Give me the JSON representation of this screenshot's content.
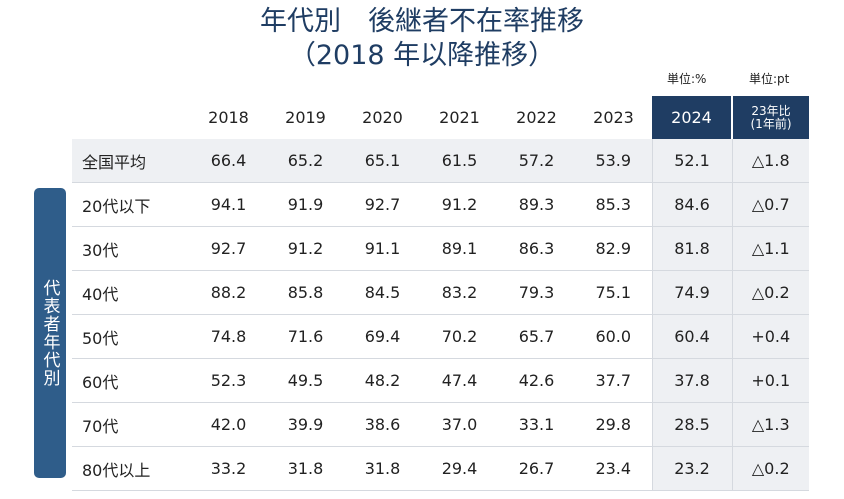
{
  "chart_data": {
    "type": "table",
    "title": "年代別　後継者不在率推移",
    "subtitle": "（2018 年以降推移）",
    "unit_left": "単位:%",
    "unit_right": "単位:pt",
    "side_label": "代表者年代別",
    "columns": [
      "2018",
      "2019",
      "2020",
      "2021",
      "2022",
      "2023",
      "2024"
    ],
    "change_header_line1": "23年比",
    "change_header_line2": "(1年前)",
    "rows": [
      {
        "label": "全国平均",
        "values": [
          "66.4",
          "65.2",
          "65.1",
          "61.5",
          "57.2",
          "53.9",
          "52.1"
        ],
        "change": "△1.8"
      },
      {
        "label": "20代以下",
        "values": [
          "94.1",
          "91.9",
          "92.7",
          "91.2",
          "89.3",
          "85.3",
          "84.6"
        ],
        "change": "△0.7"
      },
      {
        "label": "30代",
        "values": [
          "92.7",
          "91.2",
          "91.1",
          "89.1",
          "86.3",
          "82.9",
          "81.8"
        ],
        "change": "△1.1"
      },
      {
        "label": "40代",
        "values": [
          "88.2",
          "85.8",
          "84.5",
          "83.2",
          "79.3",
          "75.1",
          "74.9"
        ],
        "change": "△0.2"
      },
      {
        "label": "50代",
        "values": [
          "74.8",
          "71.6",
          "69.4",
          "70.2",
          "65.7",
          "60.0",
          "60.4"
        ],
        "change": "+0.4"
      },
      {
        "label": "60代",
        "values": [
          "52.3",
          "49.5",
          "48.2",
          "47.4",
          "42.6",
          "37.7",
          "37.8"
        ],
        "change": "+0.1"
      },
      {
        "label": "70代",
        "values": [
          "42.0",
          "39.9",
          "38.6",
          "37.0",
          "33.1",
          "29.8",
          "28.5"
        ],
        "change": "△1.3"
      },
      {
        "label": "80代以上",
        "values": [
          "33.2",
          "31.8",
          "31.8",
          "29.4",
          "26.7",
          "23.4",
          "23.2"
        ],
        "change": "△0.2"
      }
    ]
  },
  "colors": {
    "title": "#1f3d63",
    "header_highlight": "#1f3d63",
    "side_label_bg": "#2f5d8a",
    "row_tint": "#eef0f3"
  }
}
